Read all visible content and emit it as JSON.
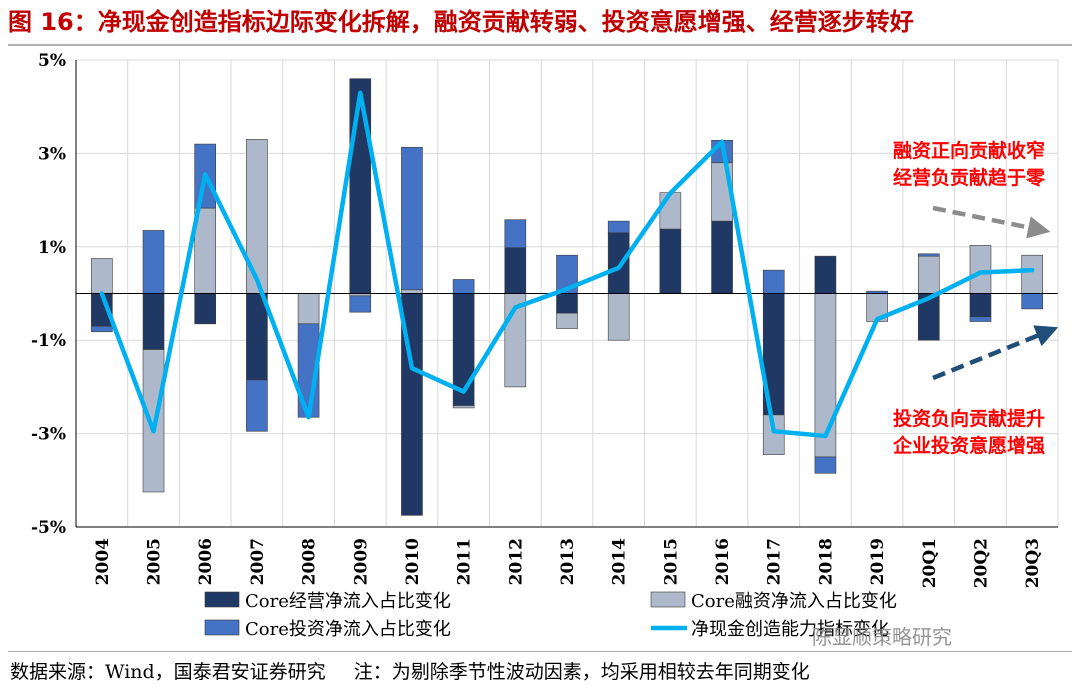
{
  "title": "图 16：净现金创造指标边际变化拆解，融资贡献转弱、投资意愿增强、经营逐步转好",
  "chart_data": {
    "type": "bar",
    "stacked": true,
    "categories": [
      "2004",
      "2005",
      "2006",
      "2007",
      "2008",
      "2009",
      "2010",
      "2011",
      "2012",
      "2013",
      "2014",
      "2015",
      "2016",
      "2017",
      "2018",
      "2019",
      "20Q1",
      "20Q2",
      "20Q3"
    ],
    "ylim": [
      -5,
      5
    ],
    "yticks": [
      -5,
      -3,
      -1,
      1,
      3,
      5
    ],
    "ytick_labels": [
      "-5%",
      "-3%",
      "-1%",
      "1%",
      "3%",
      "5%"
    ],
    "grid": true,
    "series": [
      {
        "name": "Core经营净流入占比变化",
        "kind": "bar",
        "color": "#1f3864",
        "values": [
          -0.7,
          -1.2,
          -0.65,
          -1.85,
          0,
          4.6,
          -4.75,
          -2.4,
          0.98,
          -0.42,
          1.3,
          1.38,
          1.55,
          -2.6,
          0.8,
          0,
          -1.0,
          -0.5,
          0
        ]
      },
      {
        "name": "Core融资净流入占比变化",
        "kind": "bar",
        "color": "#adb9ca",
        "values": [
          0.75,
          -3.05,
          1.83,
          3.3,
          -0.65,
          -0.05,
          0.08,
          -0.05,
          -2.0,
          -0.33,
          -1.0,
          0.78,
          1.25,
          -0.85,
          -3.5,
          -0.6,
          0.8,
          1.03,
          0.82
        ]
      },
      {
        "name": "Core投资净流入占比变化",
        "kind": "bar",
        "color": "#4472c4",
        "values": [
          -0.12,
          1.35,
          1.37,
          -1.1,
          -2.0,
          -0.35,
          3.05,
          0.3,
          0.6,
          0.82,
          0.25,
          0,
          0.48,
          0.5,
          -0.35,
          0.05,
          0.05,
          -0.1,
          -0.33
        ]
      },
      {
        "name": "净现金创造能力指标变化",
        "kind": "line",
        "color": "#00b0f0",
        "values": [
          0.0,
          -2.95,
          2.55,
          0.3,
          -2.65,
          4.3,
          -1.6,
          -2.1,
          -0.3,
          0.1,
          0.55,
          2.15,
          3.25,
          -2.95,
          -3.05,
          -0.55,
          -0.1,
          0.45,
          0.5
        ]
      }
    ],
    "annotations": [
      {
        "lines": [
          "融资正向贡献收窄",
          "经营负贡献趋于零"
        ],
        "color": "#ff0000"
      },
      {
        "lines": [
          "投资负向贡献提升",
          "企业投资意愿增强"
        ],
        "color": "#ff0000"
      }
    ],
    "legend_position": "bottom"
  },
  "footer": {
    "source": "数据来源：Wind，国泰君安证券研究",
    "note": "注：为剔除季节性波动因素，均采用相较去年同期变化"
  },
  "watermark": "陈显顺策略研究"
}
